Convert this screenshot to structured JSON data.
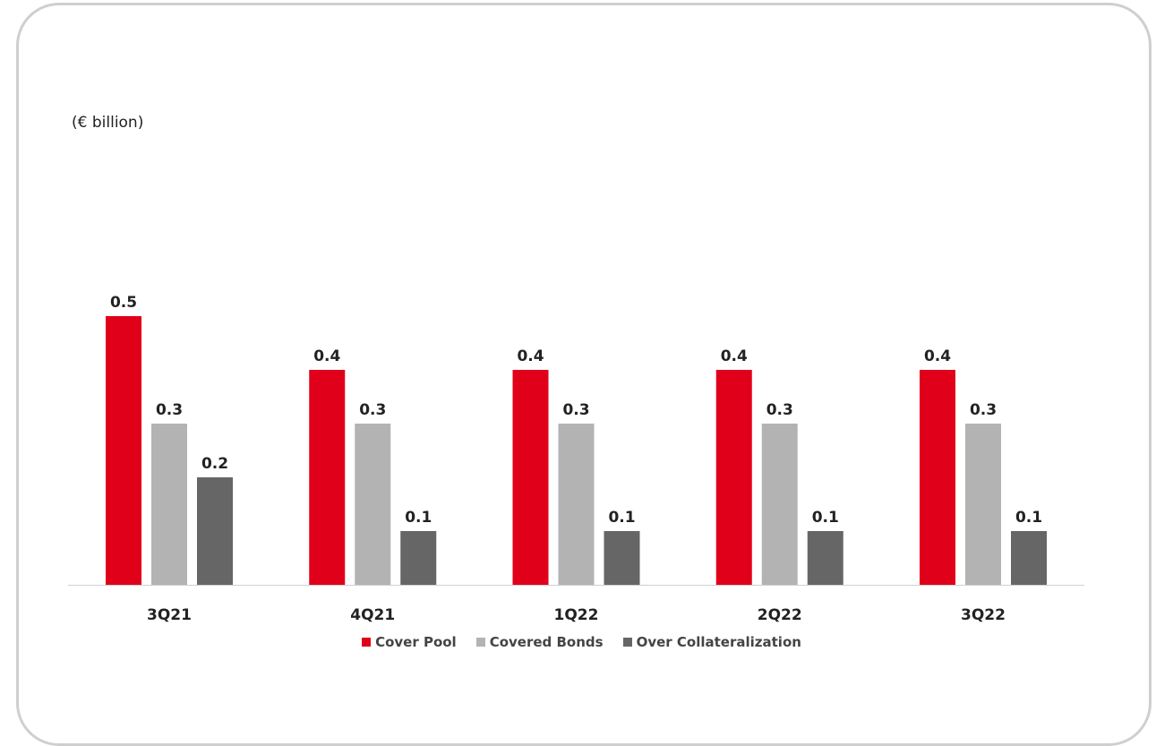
{
  "unit_label": "(€ billion)",
  "colors": {
    "cover_pool": "#e1001a",
    "covered_bonds": "#b3b3b3",
    "over_collateralization": "#666666",
    "axis": "#d0d0d0",
    "frame": "#cfcfcf"
  },
  "chart_data": {
    "type": "bar",
    "title": "",
    "xlabel": "",
    "ylabel": "(€ billion)",
    "ylim": [
      0,
      0.5
    ],
    "grid": false,
    "legend_position": "bottom",
    "categories": [
      "3Q21",
      "4Q21",
      "1Q22",
      "2Q22",
      "3Q22"
    ],
    "series": [
      {
        "name": "Cover Pool",
        "color": "#e1001a",
        "values": [
          0.5,
          0.4,
          0.4,
          0.4,
          0.4
        ]
      },
      {
        "name": "Covered Bonds",
        "color": "#b3b3b3",
        "values": [
          0.3,
          0.3,
          0.3,
          0.3,
          0.3
        ]
      },
      {
        "name": "Over Collateralization",
        "color": "#666666",
        "values": [
          0.2,
          0.1,
          0.1,
          0.1,
          0.1
        ]
      }
    ]
  }
}
